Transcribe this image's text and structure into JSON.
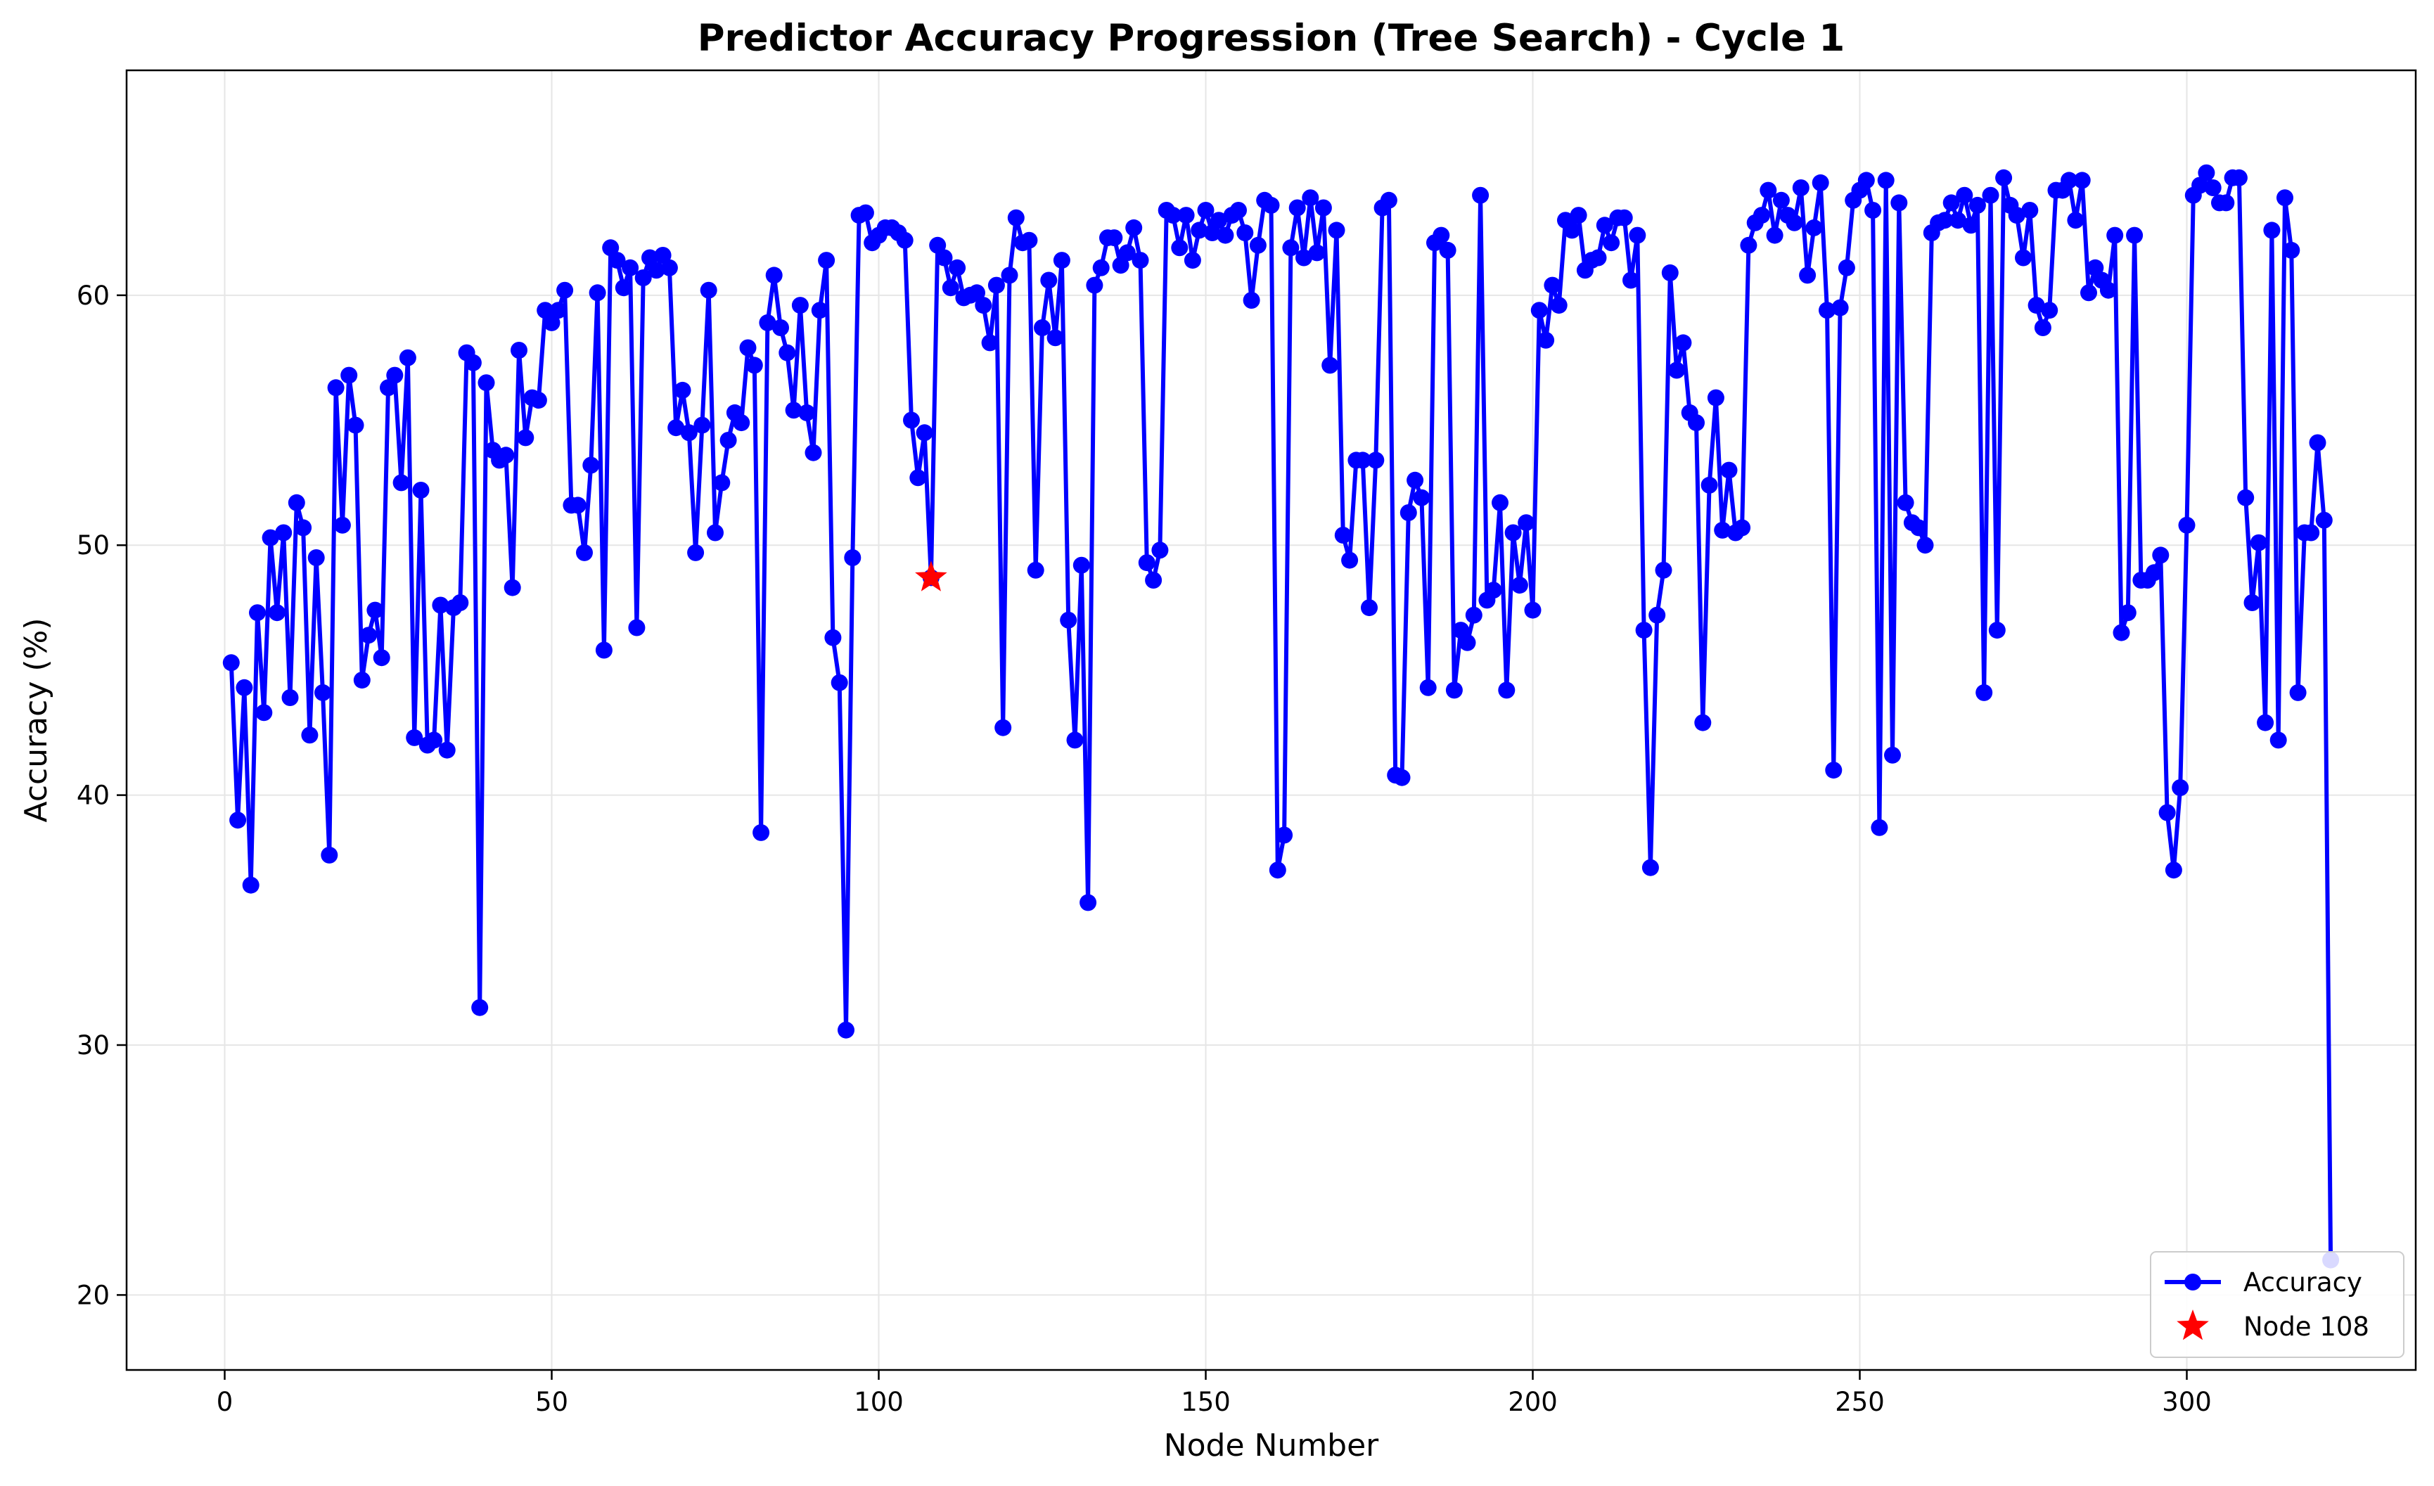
{
  "chart_data": {
    "type": "line",
    "title": "Predictor Accuracy Progression (Tree Search) - Cycle 1",
    "xlabel": "Node Number",
    "ylabel": "Accuracy (%)",
    "xlim": [
      -15,
      335
    ],
    "ylim": [
      17,
      69
    ],
    "xticks": [
      0,
      50,
      100,
      150,
      200,
      250,
      300
    ],
    "yticks": [
      20,
      30,
      40,
      50,
      60
    ],
    "grid": true,
    "legend_position": "bottom-right",
    "colors": {
      "series": "#0000ff",
      "highlight": "#ff0000",
      "grid": "#e6e6e6"
    },
    "series": [
      {
        "name": "Accuracy",
        "x_start": 1,
        "values": [
          45.3,
          39.0,
          44.3,
          36.4,
          47.3,
          43.3,
          50.3,
          47.3,
          50.5,
          43.9,
          51.7,
          50.7,
          42.4,
          49.5,
          44.1,
          37.6,
          56.3,
          50.8,
          56.8,
          54.8,
          44.6,
          46.4,
          47.4,
          45.5,
          56.3,
          56.8,
          52.5,
          57.5,
          42.3,
          52.2,
          42.0,
          42.2,
          47.6,
          41.8,
          47.5,
          47.7,
          57.7,
          57.3,
          31.5,
          56.5,
          53.8,
          53.4,
          53.6,
          48.3,
          57.8,
          54.3,
          55.9,
          55.8,
          59.4,
          58.9,
          59.4,
          60.2,
          51.6,
          51.6,
          49.7,
          53.2,
          60.1,
          45.8,
          61.9,
          61.4,
          60.3,
          61.1,
          46.7,
          60.7,
          61.5,
          61.0,
          61.6,
          61.1,
          54.7,
          56.2,
          54.5,
          49.7,
          54.8,
          60.2,
          50.5,
          52.5,
          54.2,
          55.3,
          54.9,
          57.9,
          57.2,
          38.5,
          58.9,
          60.8,
          58.7,
          57.7,
          55.4,
          59.6,
          55.3,
          53.7,
          59.4,
          61.4,
          46.3,
          44.5,
          30.6,
          49.5,
          63.2,
          63.3,
          62.1,
          62.4,
          62.7,
          62.7,
          62.5,
          62.2,
          55.0,
          52.7,
          54.5,
          48.7,
          62.0,
          61.5,
          60.3,
          61.1,
          59.9,
          60.0,
          60.1,
          59.6,
          58.1,
          60.4,
          42.7,
          60.8,
          63.1,
          62.1,
          62.2,
          49.0,
          58.7,
          60.6,
          58.3,
          61.4,
          47.0,
          42.2,
          49.2,
          35.7,
          60.4,
          61.1,
          62.3,
          62.3,
          61.2,
          61.7,
          62.7,
          61.4,
          49.3,
          48.6,
          49.8,
          63.4,
          63.2,
          61.9,
          63.2,
          61.4,
          62.6,
          63.4,
          62.5,
          63.0,
          62.4,
          63.2,
          63.4,
          62.5,
          59.8,
          62.0,
          63.8,
          63.6,
          37.0,
          38.4,
          61.9,
          63.5,
          61.5,
          63.9,
          61.7,
          63.5,
          57.2,
          62.6,
          50.4,
          49.4,
          53.4,
          53.4,
          47.5,
          53.4,
          63.5,
          63.8,
          40.8,
          40.7,
          51.3,
          52.6,
          51.9,
          44.3,
          62.1,
          62.4,
          61.8,
          44.2,
          46.6,
          46.1,
          47.2,
          64.0,
          47.8,
          48.2,
          51.7,
          44.2,
          50.5,
          48.4,
          50.9,
          47.4,
          59.4,
          58.2,
          60.4,
          59.6,
          63.0,
          62.6,
          63.2,
          61.0,
          61.4,
          61.5,
          62.8,
          62.1,
          63.1,
          63.1,
          60.6,
          62.4,
          46.6,
          37.1,
          47.2,
          49.0,
          60.9,
          57.0,
          58.1,
          55.3,
          54.9,
          42.9,
          52.4,
          55.9,
          50.6,
          53.0,
          50.5,
          50.7,
          62.0,
          62.9,
          63.2,
          64.2,
          62.4,
          63.8,
          63.2,
          62.9,
          64.3,
          60.8,
          62.7,
          64.5,
          59.4,
          41.0,
          59.5,
          61.1,
          63.8,
          64.2,
          64.6,
          63.4,
          38.7,
          64.6,
          41.6,
          63.7,
          51.7,
          50.9,
          50.7,
          50.0,
          62.5,
          62.9,
          63.0,
          63.7,
          63.0,
          64.0,
          62.8,
          63.6,
          44.1,
          64.0,
          46.6,
          64.7,
          63.6,
          63.2,
          61.5,
          63.4,
          59.6,
          58.7,
          59.4,
          64.2,
          64.2,
          64.6,
          63.0,
          64.6,
          60.1,
          61.1,
          60.6,
          60.2,
          62.4,
          46.5,
          47.3,
          62.4,
          48.6,
          48.6,
          48.9,
          49.6,
          39.3,
          37.0,
          40.3,
          50.8,
          64.0,
          64.4,
          64.9,
          64.3,
          63.7,
          63.7,
          64.7,
          64.7,
          51.9,
          47.7,
          50.1,
          42.9,
          62.6,
          42.2,
          63.9,
          61.8,
          44.1,
          50.5,
          50.5,
          54.1,
          51.0,
          21.4
        ]
      },
      {
        "name": "Node 108",
        "x": 108,
        "y": 48.7
      }
    ]
  }
}
